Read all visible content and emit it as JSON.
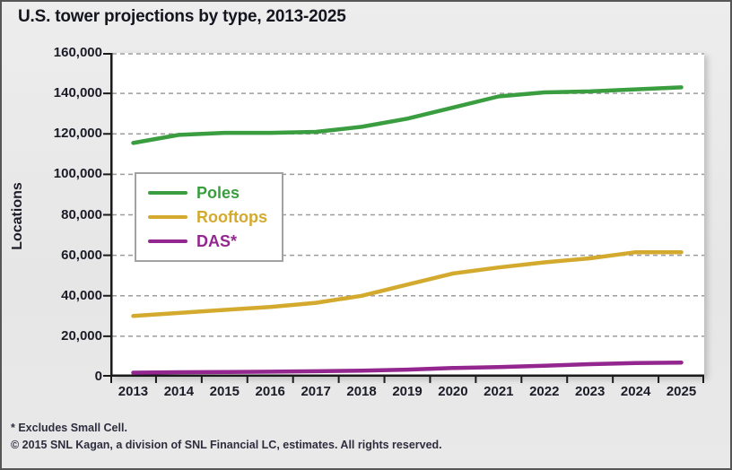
{
  "title": "U.S. tower projections by type, 2013-2025",
  "footnotes": {
    "line1": "* Excludes Small Cell.",
    "line2": "© 2015 SNL Kagan, a division of SNL Financial LC, estimates. All rights reserved."
  },
  "colors": {
    "background": "#e8e8e8",
    "frame_border": "#565656",
    "plot_background": "#ffffff",
    "gridline": "#9c9c9c",
    "axis_line": "#1a1a1a",
    "text": "#1c1c28",
    "poles": "#3a9e40",
    "rooftops": "#d4aa2e",
    "das": "#93278f"
  },
  "chart_data": {
    "type": "line",
    "title": "U.S. tower projections by type, 2013-2025",
    "xlabel": "",
    "ylabel": "Locations",
    "ylim": [
      0,
      160000
    ],
    "ytick_step": 20000,
    "grid": "horizontal dashed",
    "legend_position": "inside upper-left",
    "categories": [
      "2013",
      "2014",
      "2015",
      "2016",
      "2017",
      "2018",
      "2019",
      "2020",
      "2021",
      "2022",
      "2023",
      "2024",
      "2025"
    ],
    "series": [
      {
        "name": "Poles",
        "color": "#3a9e40",
        "values": [
          115500,
          119500,
          120500,
          120500,
          121000,
          123500,
          127500,
          133000,
          138500,
          140500,
          141000,
          142000,
          143000
        ]
      },
      {
        "name": "Rooftops",
        "color": "#d4aa2e",
        "values": [
          30000,
          31500,
          33000,
          34500,
          36500,
          40000,
          45500,
          51000,
          54000,
          56500,
          58500,
          61500,
          61500
        ]
      },
      {
        "name": "DAS*",
        "color": "#93278f",
        "values": [
          2000,
          2200,
          2300,
          2500,
          2700,
          3000,
          3500,
          4300,
          4800,
          5400,
          6200,
          6800,
          7000
        ]
      }
    ]
  }
}
